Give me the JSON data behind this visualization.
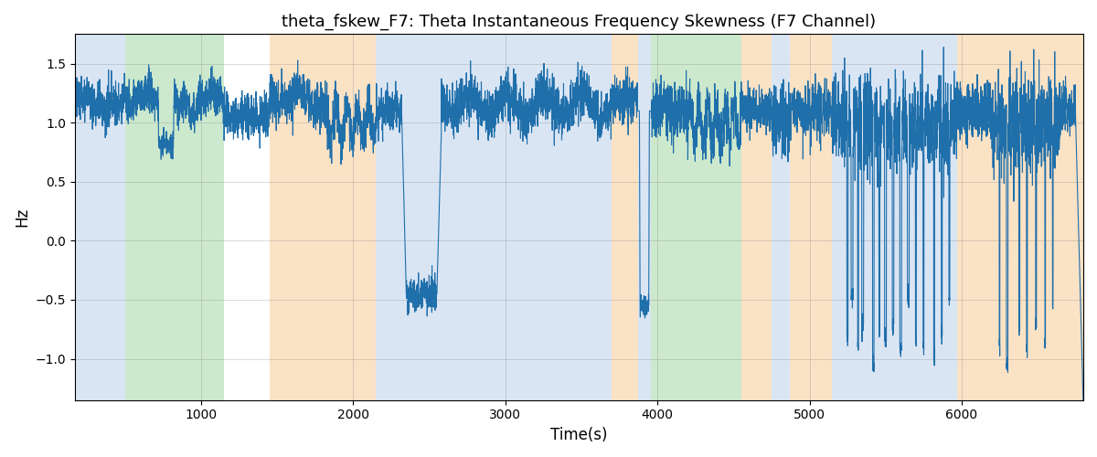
{
  "title": "theta_fskew_F7: Theta Instantaneous Frequency Skewness (F7 Channel)",
  "xlabel": "Time(s)",
  "ylabel": "Hz",
  "xlim": [
    170,
    6800
  ],
  "ylim": [
    -1.35,
    1.75
  ],
  "line_color": "#1f6faa",
  "line_width": 0.8,
  "bg_color": "white",
  "grid_color": "gray",
  "grid_alpha": 0.4,
  "colored_regions": [
    {
      "xmin": 170,
      "xmax": 500,
      "color": "#aec6e8",
      "alpha": 0.45
    },
    {
      "xmin": 500,
      "xmax": 1150,
      "color": "#90d090",
      "alpha": 0.45
    },
    {
      "xmin": 1450,
      "xmax": 2150,
      "color": "#f5c080",
      "alpha": 0.45
    },
    {
      "xmin": 2150,
      "xmax": 3700,
      "color": "#aec6e8",
      "alpha": 0.45
    },
    {
      "xmin": 3700,
      "xmax": 3870,
      "color": "#f5c080",
      "alpha": 0.45
    },
    {
      "xmin": 3870,
      "xmax": 3960,
      "color": "#aec6e8",
      "alpha": 0.45
    },
    {
      "xmin": 3960,
      "xmax": 4550,
      "color": "#90d090",
      "alpha": 0.45
    },
    {
      "xmin": 4550,
      "xmax": 4750,
      "color": "#f5c080",
      "alpha": 0.45
    },
    {
      "xmin": 4750,
      "xmax": 4870,
      "color": "#aec6e8",
      "alpha": 0.45
    },
    {
      "xmin": 4870,
      "xmax": 5150,
      "color": "#f5c080",
      "alpha": 0.45
    },
    {
      "xmin": 5150,
      "xmax": 5970,
      "color": "#aec6e8",
      "alpha": 0.45
    },
    {
      "xmin": 5970,
      "xmax": 6800,
      "color": "#f5c080",
      "alpha": 0.45
    }
  ],
  "xticks": [
    1000,
    2000,
    3000,
    4000,
    5000,
    6000
  ],
  "yticks": [
    -1.0,
    -0.5,
    0.0,
    0.5,
    1.0,
    1.5
  ]
}
